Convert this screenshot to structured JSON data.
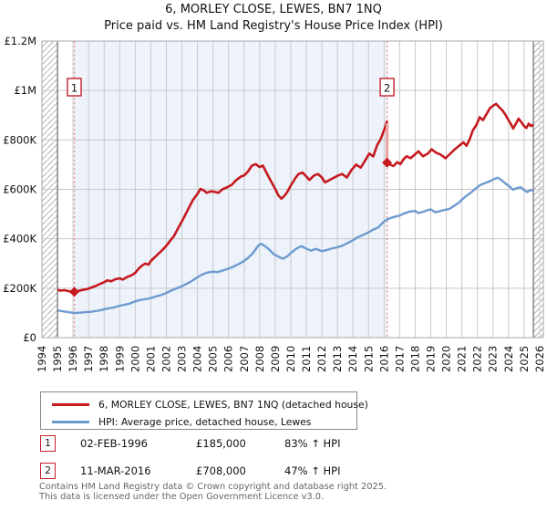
{
  "title": "6, MORLEY CLOSE, LEWES, BN7 1NQ",
  "subtitle": "Price paid vs. HM Land Registry's House Price Index (HPI)",
  "legend": {
    "items": [
      {
        "label": "6, MORLEY CLOSE, LEWES, BN7 1NQ (detached house)",
        "color": "#c51a1f",
        "thickness": 3.5
      },
      {
        "label": "HPI: Average price, detached house, Lewes",
        "color": "#6d9bcf",
        "thickness": 3
      }
    ]
  },
  "annotations": [
    {
      "num": "1",
      "date": "02-FEB-1996",
      "price": "£185,000",
      "hpi": "83% ↑ HPI"
    },
    {
      "num": "2",
      "date": "11-MAR-2016",
      "price": "£708,000",
      "hpi": "47% ↑ HPI"
    }
  ],
  "footer": {
    "line1": "Contains HM Land Registry data © Crown copyright and database right 2025.",
    "line2": "This data is licensed under the Open Government Licence v3.0."
  },
  "chart_data": {
    "type": "line",
    "x_range": [
      1994,
      2026
    ],
    "ylim_gbp": [
      0,
      1200000
    ],
    "grid": true,
    "legend_position": "below",
    "y_ticks": [
      [
        0,
        "£0"
      ],
      [
        200,
        "£200K"
      ],
      [
        400,
        "£400K"
      ],
      [
        600,
        "£600K"
      ],
      [
        800,
        "£800K"
      ],
      [
        1000,
        "£1M"
      ],
      [
        1200,
        "£1.2M"
      ]
    ],
    "shaded_period": [
      1996.08,
      2016.19
    ],
    "data_start_year": 1995.0,
    "data_end_year": 2025.6,
    "markers": [
      {
        "label": "1",
        "year": 1996.08,
        "value_k": 185
      },
      {
        "label": "2",
        "year": 2016.19,
        "value_k": 708
      }
    ],
    "sale_drop": {
      "year": 2016.19,
      "from_k": 874,
      "to_k": 708
    },
    "colors": {
      "red": "#c51a1f",
      "red_pale": "#eba3a3",
      "blue": "#6d9bcf",
      "dashed": "#e98989",
      "shade": "#edf2fb",
      "grid": "#c9c9c9",
      "border": "#a8a8a8",
      "hatch": "#b3b3b3",
      "boundary": "#777777",
      "marker_box_border": "#c21f2a"
    },
    "series": [
      {
        "name": "6, MORLEY CLOSE, LEWES, BN7 1NQ (detached house)",
        "color": "#c51a1f",
        "unit": "GBP_thousands",
        "points": [
          [
            1995.0,
            193
          ],
          [
            1995.2,
            190
          ],
          [
            1995.45,
            192
          ],
          [
            1995.7,
            188
          ],
          [
            1995.9,
            187
          ],
          [
            1996.08,
            185
          ],
          [
            1996.35,
            189
          ],
          [
            1996.6,
            193
          ],
          [
            1996.9,
            196
          ],
          [
            1997.2,
            203
          ],
          [
            1997.5,
            210
          ],
          [
            1997.75,
            218
          ],
          [
            1998.0,
            224
          ],
          [
            1998.2,
            232
          ],
          [
            1998.45,
            228
          ],
          [
            1998.7,
            236
          ],
          [
            1999.0,
            240
          ],
          [
            1999.2,
            235
          ],
          [
            1999.5,
            246
          ],
          [
            1999.75,
            252
          ],
          [
            2000.0,
            262
          ],
          [
            2000.2,
            278
          ],
          [
            2000.45,
            292
          ],
          [
            2000.65,
            300
          ],
          [
            2000.85,
            295
          ],
          [
            2001.0,
            310
          ],
          [
            2001.25,
            325
          ],
          [
            2001.5,
            340
          ],
          [
            2001.75,
            355
          ],
          [
            2002.0,
            372
          ],
          [
            2002.25,
            392
          ],
          [
            2002.5,
            412
          ],
          [
            2002.8,
            448
          ],
          [
            2003.1,
            482
          ],
          [
            2003.4,
            520
          ],
          [
            2003.7,
            556
          ],
          [
            2004.0,
            582
          ],
          [
            2004.2,
            602
          ],
          [
            2004.4,
            596
          ],
          [
            2004.6,
            586
          ],
          [
            2004.85,
            592
          ],
          [
            2005.1,
            590
          ],
          [
            2005.35,
            586
          ],
          [
            2005.6,
            600
          ],
          [
            2005.9,
            608
          ],
          [
            2006.2,
            618
          ],
          [
            2006.5,
            638
          ],
          [
            2006.8,
            652
          ],
          [
            2007.0,
            656
          ],
          [
            2007.25,
            672
          ],
          [
            2007.5,
            696
          ],
          [
            2007.75,
            702
          ],
          [
            2008.0,
            690
          ],
          [
            2008.2,
            696
          ],
          [
            2008.45,
            666
          ],
          [
            2008.7,
            636
          ],
          [
            2009.0,
            602
          ],
          [
            2009.2,
            576
          ],
          [
            2009.4,
            562
          ],
          [
            2009.6,
            574
          ],
          [
            2009.8,
            592
          ],
          [
            2010.0,
            616
          ],
          [
            2010.3,
            646
          ],
          [
            2010.5,
            662
          ],
          [
            2010.75,
            668
          ],
          [
            2011.0,
            652
          ],
          [
            2011.2,
            638
          ],
          [
            2011.5,
            656
          ],
          [
            2011.75,
            662
          ],
          [
            2012.0,
            648
          ],
          [
            2012.2,
            628
          ],
          [
            2012.5,
            638
          ],
          [
            2012.8,
            648
          ],
          [
            2013.05,
            656
          ],
          [
            2013.3,
            662
          ],
          [
            2013.6,
            648
          ],
          [
            2013.9,
            678
          ],
          [
            2014.2,
            700
          ],
          [
            2014.5,
            688
          ],
          [
            2014.8,
            718
          ],
          [
            2015.05,
            745
          ],
          [
            2015.3,
            733
          ],
          [
            2015.55,
            778
          ],
          [
            2015.8,
            806
          ],
          [
            2016.0,
            840
          ],
          [
            2016.18,
            874
          ],
          [
            2016.19,
            708
          ],
          [
            2016.4,
            700
          ],
          [
            2016.6,
            694
          ],
          [
            2016.85,
            710
          ],
          [
            2017.05,
            702
          ],
          [
            2017.25,
            722
          ],
          [
            2017.45,
            734
          ],
          [
            2017.7,
            726
          ],
          [
            2018.0,
            742
          ],
          [
            2018.2,
            754
          ],
          [
            2018.5,
            734
          ],
          [
            2018.8,
            744
          ],
          [
            2019.05,
            762
          ],
          [
            2019.35,
            748
          ],
          [
            2019.65,
            740
          ],
          [
            2019.95,
            726
          ],
          [
            2020.25,
            744
          ],
          [
            2020.55,
            762
          ],
          [
            2020.85,
            778
          ],
          [
            2021.1,
            790
          ],
          [
            2021.3,
            776
          ],
          [
            2021.5,
            802
          ],
          [
            2021.7,
            838
          ],
          [
            2021.95,
            862
          ],
          [
            2022.15,
            892
          ],
          [
            2022.35,
            880
          ],
          [
            2022.6,
            906
          ],
          [
            2022.8,
            928
          ],
          [
            2023.0,
            938
          ],
          [
            2023.2,
            946
          ],
          [
            2023.4,
            932
          ],
          [
            2023.6,
            920
          ],
          [
            2023.8,
            902
          ],
          [
            2024.0,
            880
          ],
          [
            2024.15,
            864
          ],
          [
            2024.3,
            846
          ],
          [
            2024.5,
            868
          ],
          [
            2024.65,
            886
          ],
          [
            2024.8,
            874
          ],
          [
            2025.0,
            856
          ],
          [
            2025.15,
            848
          ],
          [
            2025.3,
            866
          ],
          [
            2025.45,
            856
          ],
          [
            2025.6,
            862
          ]
        ]
      },
      {
        "name": "HPI: Average price, detached house, Lewes",
        "color": "#6d9bcf",
        "unit": "GBP_thousands",
        "points": [
          [
            1995.0,
            110
          ],
          [
            1995.3,
            107
          ],
          [
            1995.6,
            104
          ],
          [
            1995.9,
            101
          ],
          [
            1996.2,
            100
          ],
          [
            1996.5,
            101
          ],
          [
            1996.8,
            103
          ],
          [
            1997.1,
            104
          ],
          [
            1997.4,
            107
          ],
          [
            1997.7,
            110
          ],
          [
            1998.0,
            115
          ],
          [
            1998.3,
            119
          ],
          [
            1998.6,
            122
          ],
          [
            1999.0,
            129
          ],
          [
            1999.3,
            133
          ],
          [
            1999.6,
            137
          ],
          [
            2000.0,
            147
          ],
          [
            2000.3,
            152
          ],
          [
            2000.6,
            155
          ],
          [
            2001.0,
            160
          ],
          [
            2001.3,
            166
          ],
          [
            2001.6,
            171
          ],
          [
            2002.0,
            181
          ],
          [
            2002.3,
            190
          ],
          [
            2002.6,
            198
          ],
          [
            2003.0,
            208
          ],
          [
            2003.3,
            218
          ],
          [
            2003.6,
            228
          ],
          [
            2004.0,
            244
          ],
          [
            2004.3,
            255
          ],
          [
            2004.6,
            263
          ],
          [
            2005.0,
            267
          ],
          [
            2005.3,
            265
          ],
          [
            2005.6,
            271
          ],
          [
            2006.0,
            279
          ],
          [
            2006.3,
            287
          ],
          [
            2006.6,
            296
          ],
          [
            2007.0,
            310
          ],
          [
            2007.3,
            325
          ],
          [
            2007.6,
            345
          ],
          [
            2007.9,
            372
          ],
          [
            2008.1,
            380
          ],
          [
            2008.35,
            370
          ],
          [
            2008.6,
            357
          ],
          [
            2008.9,
            338
          ],
          [
            2009.2,
            328
          ],
          [
            2009.5,
            319
          ],
          [
            2009.8,
            330
          ],
          [
            2010.1,
            348
          ],
          [
            2010.4,
            362
          ],
          [
            2010.7,
            370
          ],
          [
            2011.0,
            360
          ],
          [
            2011.3,
            352
          ],
          [
            2011.6,
            359
          ],
          [
            2012.0,
            350
          ],
          [
            2012.3,
            354
          ],
          [
            2012.6,
            360
          ],
          [
            2013.0,
            366
          ],
          [
            2013.3,
            372
          ],
          [
            2013.6,
            381
          ],
          [
            2014.0,
            394
          ],
          [
            2014.3,
            406
          ],
          [
            2014.6,
            414
          ],
          [
            2015.0,
            426
          ],
          [
            2015.3,
            437
          ],
          [
            2015.6,
            445
          ],
          [
            2016.0,
            470
          ],
          [
            2016.19,
            478
          ],
          [
            2016.5,
            486
          ],
          [
            2017.0,
            494
          ],
          [
            2017.3,
            503
          ],
          [
            2017.6,
            509
          ],
          [
            2018.0,
            513
          ],
          [
            2018.2,
            504
          ],
          [
            2018.5,
            509
          ],
          [
            2018.8,
            516
          ],
          [
            2019.0,
            519
          ],
          [
            2019.3,
            507
          ],
          [
            2019.6,
            512
          ],
          [
            2019.9,
            517
          ],
          [
            2020.2,
            521
          ],
          [
            2020.5,
            533
          ],
          [
            2020.8,
            546
          ],
          [
            2021.0,
            558
          ],
          [
            2021.3,
            574
          ],
          [
            2021.6,
            588
          ],
          [
            2021.9,
            604
          ],
          [
            2022.2,
            618
          ],
          [
            2022.5,
            626
          ],
          [
            2022.8,
            633
          ],
          [
            2023.05,
            641
          ],
          [
            2023.3,
            647
          ],
          [
            2023.55,
            637
          ],
          [
            2023.8,
            624
          ],
          [
            2024.05,
            612
          ],
          [
            2024.3,
            598
          ],
          [
            2024.55,
            606
          ],
          [
            2024.8,
            608
          ],
          [
            2025.0,
            597
          ],
          [
            2025.2,
            589
          ],
          [
            2025.4,
            597
          ],
          [
            2025.6,
            594
          ]
        ]
      }
    ]
  }
}
